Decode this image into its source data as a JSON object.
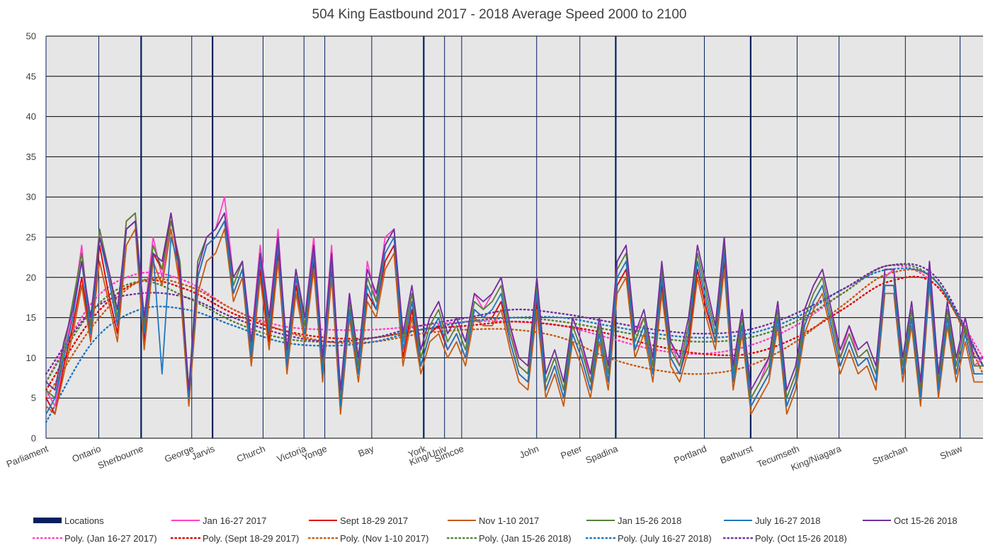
{
  "chart_data": {
    "type": "line",
    "title": "504 King Eastbound 2017 - 2018 Average Speed 2000 to 2100",
    "xlabel": "",
    "ylabel": "",
    "ylim": [
      0,
      50
    ],
    "y_ticks": [
      "0",
      "5",
      "10",
      "15",
      "20",
      "25",
      "30",
      "35",
      "40",
      "45",
      "50"
    ],
    "grid": true,
    "plot_background": "#e7e6e6",
    "legend_position": "bottom",
    "locations": [
      {
        "name": "Parliament",
        "pos": 0.0,
        "major": false
      },
      {
        "name": "Ontario",
        "pos": 0.0563,
        "major": false
      },
      {
        "name": "Sherbourne",
        "pos": 0.1015,
        "major": true
      },
      {
        "name": "George",
        "pos": 0.1555,
        "major": false
      },
      {
        "name": "Jarvis",
        "pos": 0.1777,
        "major": true
      },
      {
        "name": "Church",
        "pos": 0.2316,
        "major": false
      },
      {
        "name": "Victoria",
        "pos": 0.2753,
        "major": false
      },
      {
        "name": "Yonge",
        "pos": 0.2975,
        "major": false
      },
      {
        "name": "Bay",
        "pos": 0.3476,
        "major": false
      },
      {
        "name": "York",
        "pos": 0.4031,
        "major": true
      },
      {
        "name": "King/Univ",
        "pos": 0.4253,
        "major": false
      },
      {
        "name": "Simcoe",
        "pos": 0.4436,
        "major": false
      },
      {
        "name": "John",
        "pos": 0.5236,
        "major": false
      },
      {
        "name": "Peter",
        "pos": 0.5697,
        "major": false
      },
      {
        "name": "Spadina",
        "pos": 0.608,
        "major": true
      },
      {
        "name": "Portland",
        "pos": 0.7026,
        "major": false
      },
      {
        "name": "Bathurst",
        "pos": 0.752,
        "major": true
      },
      {
        "name": "Tecumseth",
        "pos": 0.8016,
        "major": false
      },
      {
        "name": "King/Niagara",
        "pos": 0.8463,
        "major": false
      },
      {
        "name": "Strachan",
        "pos": 0.9171,
        "major": false
      },
      {
        "name": "Shaw",
        "pos": 0.9755,
        "major": false
      }
    ],
    "series": [
      {
        "name": "Jan 16-27 2017",
        "color": "#ff40c8",
        "values": [
          6,
          4,
          10,
          16,
          24,
          12,
          26,
          20,
          14,
          27,
          28,
          15,
          25,
          20,
          27,
          22,
          5,
          22,
          25,
          26,
          30,
          20,
          22,
          12,
          24,
          15,
          26,
          10,
          21,
          15,
          25,
          10,
          24,
          5,
          18,
          9,
          22,
          17,
          25,
          26,
          12,
          18,
          11,
          15,
          17,
          13,
          15,
          12,
          18,
          16,
          18,
          20,
          14,
          9,
          8,
          20,
          7,
          10,
          6,
          15,
          12,
          7,
          14,
          8,
          22,
          24,
          13,
          15,
          9,
          21,
          12,
          9,
          14,
          24,
          19,
          14,
          25,
          8,
          16,
          5,
          7,
          10,
          17,
          5,
          8,
          16,
          19,
          21,
          16,
          10,
          14,
          10,
          11,
          8,
          20,
          21,
          9,
          16,
          6,
          22,
          8,
          16,
          9,
          15,
          9,
          10
        ]
      },
      {
        "name": "Sept 18-29 2017",
        "color": "#e00000",
        "values": [
          5,
          3,
          9,
          14,
          20,
          13,
          24,
          18,
          13,
          26,
          27,
          12,
          23,
          21,
          28,
          20,
          5,
          20,
          24,
          25,
          27,
          18,
          21,
          10,
          21,
          12,
          23,
          9,
          19,
          13,
          22,
          8,
          21,
          4,
          16,
          8,
          18,
          16,
          22,
          24,
          10,
          16,
          9,
          13,
          14,
          11,
          13,
          10,
          16,
          15,
          15,
          17,
          12,
          8,
          7,
          17,
          6,
          9,
          5,
          13,
          10,
          6,
          13,
          7,
          19,
          21,
          11,
          14,
          8,
          19,
          10,
          8,
          12,
          21,
          16,
          12,
          22,
          7,
          14,
          4,
          6,
          8,
          15,
          4,
          7,
          14,
          17,
          19,
          14,
          9,
          12,
          9,
          10,
          7,
          19,
          19,
          8,
          15,
          5,
          20,
          6,
          15,
          8,
          13,
          8,
          8
        ]
      },
      {
        "name": "Nov 1-10 2017",
        "color": "#c55a11",
        "values": [
          4,
          3,
          8,
          13,
          19,
          12,
          22,
          17,
          12,
          24,
          26,
          11,
          22,
          19,
          26,
          19,
          4,
          18,
          22,
          23,
          26,
          17,
          20,
          9,
          20,
          11,
          22,
          8,
          18,
          12,
          21,
          7,
          20,
          3,
          15,
          7,
          17,
          15,
          21,
          23,
          9,
          15,
          8,
          12,
          13,
          10,
          12,
          9,
          15,
          14,
          14,
          16,
          11,
          7,
          6,
          16,
          5,
          8,
          4,
          12,
          9,
          5,
          12,
          6,
          18,
          20,
          10,
          13,
          7,
          18,
          9,
          7,
          11,
          20,
          15,
          11,
          21,
          6,
          13,
          3,
          5,
          7,
          14,
          3,
          6,
          13,
          16,
          18,
          13,
          8,
          11,
          8,
          9,
          6,
          18,
          18,
          7,
          14,
          4,
          19,
          5,
          14,
          7,
          12,
          7,
          7
        ]
      },
      {
        "name": "Jan 15-26 2018",
        "color": "#548235",
        "values": [
          6,
          5,
          11,
          17,
          23,
          14,
          26,
          21,
          15,
          27,
          28,
          14,
          24,
          21,
          27,
          22,
          6,
          22,
          25,
          26,
          28,
          19,
          22,
          11,
          23,
          14,
          25,
          10,
          21,
          14,
          24,
          9,
          23,
          5,
          17,
          9,
          20,
          17,
          24,
          26,
          12,
          18,
          10,
          14,
          16,
          12,
          14,
          11,
          17,
          16,
          17,
          19,
          13,
          9,
          8,
          19,
          7,
          10,
          6,
          14,
          11,
          7,
          14,
          8,
          21,
          23,
          12,
          15,
          9,
          21,
          11,
          9,
          14,
          23,
          18,
          13,
          24,
          8,
          15,
          5,
          7,
          9,
          16,
          5,
          8,
          15,
          18,
          20,
          15,
          10,
          13,
          10,
          11,
          8,
          20,
          20,
          9,
          16,
          6,
          21,
          7,
          16,
          9,
          14,
          9,
          9
        ]
      },
      {
        "name": "July 16-27 2018",
        "color": "#1f77c0",
        "values": [
          3,
          5,
          10,
          15,
          22,
          13,
          25,
          20,
          14,
          26,
          27,
          13,
          23,
          8,
          25,
          21,
          5,
          20,
          24,
          25,
          27,
          18,
          21,
          10,
          22,
          13,
          24,
          9,
          20,
          13,
          23,
          8,
          22,
          4,
          16,
          8,
          19,
          16,
          23,
          25,
          11,
          17,
          9,
          13,
          15,
          11,
          13,
          10,
          16,
          15,
          16,
          18,
          12,
          8,
          7,
          18,
          6,
          9,
          5,
          13,
          10,
          6,
          13,
          7,
          20,
          22,
          11,
          14,
          8,
          20,
          10,
          8,
          13,
          22,
          17,
          12,
          23,
          7,
          14,
          4,
          6,
          8,
          15,
          4,
          7,
          14,
          17,
          19,
          14,
          9,
          12,
          9,
          10,
          7,
          19,
          19,
          8,
          15,
          5,
          20,
          6,
          15,
          8,
          13,
          8,
          8
        ]
      },
      {
        "name": "Oct 15-26 2018",
        "color": "#7030a0",
        "values": [
          7,
          6,
          12,
          16,
          22,
          15,
          25,
          21,
          16,
          26,
          27,
          15,
          23,
          22,
          28,
          21,
          6,
          21,
          25,
          26,
          28,
          20,
          22,
          12,
          23,
          15,
          25,
          11,
          21,
          15,
          24,
          10,
          23,
          6,
          18,
          10,
          21,
          18,
          24,
          26,
          13,
          19,
          11,
          15,
          17,
          13,
          15,
          12,
          18,
          17,
          18,
          20,
          14,
          10,
          9,
          20,
          8,
          11,
          7,
          15,
          12,
          8,
          15,
          9,
          22,
          24,
          13,
          16,
          10,
          22,
          12,
          10,
          15,
          24,
          19,
          14,
          25,
          9,
          16,
          6,
          8,
          10,
          17,
          6,
          9,
          16,
          19,
          21,
          16,
          11,
          14,
          11,
          12,
          9,
          21,
          21,
          10,
          17,
          7,
          22,
          8,
          17,
          10,
          15,
          10,
          10
        ]
      }
    ],
    "trendlines": [
      {
        "name": "Poly. (Jan 16-27 2017)",
        "color": "#ff40c8",
        "x": [
          0,
          0.05,
          0.1,
          0.15,
          0.2,
          0.25,
          0.3,
          0.35,
          0.4,
          0.45,
          0.5,
          0.55,
          0.6,
          0.65,
          0.7,
          0.75,
          0.8,
          0.85,
          0.9,
          0.95,
          1.0
        ],
        "values": [
          7,
          17,
          20.5,
          19.5,
          16,
          14,
          13.5,
          13.5,
          14,
          14.5,
          14.5,
          14,
          12.5,
          11,
          10.5,
          11.5,
          14,
          18,
          21.5,
          19,
          10
        ]
      },
      {
        "name": "Poly. (Sept 18-29 2017)",
        "color": "#e00000",
        "x": [
          0,
          0.05,
          0.1,
          0.15,
          0.2,
          0.25,
          0.3,
          0.35,
          0.4,
          0.45,
          0.5,
          0.55,
          0.6,
          0.65,
          0.7,
          0.75,
          0.8,
          0.85,
          0.9,
          0.95,
          1.0
        ],
        "values": [
          6,
          15,
          19.5,
          18.5,
          15.5,
          13.5,
          12.5,
          12.5,
          13.5,
          14,
          14.5,
          14,
          13,
          11.5,
          10.5,
          10.5,
          12.5,
          16,
          19.5,
          19,
          9
        ]
      },
      {
        "name": "Poly. (Nov 1-10 2017)",
        "color": "#c55a11",
        "x": [
          0,
          0.05,
          0.1,
          0.15,
          0.2,
          0.25,
          0.3,
          0.35,
          0.4,
          0.45,
          0.5,
          0.55,
          0.6,
          0.65,
          0.7,
          0.75,
          0.8,
          0.85,
          0.9,
          0.95,
          1.0
        ],
        "values": [
          5,
          14,
          19.5,
          19,
          16,
          13.5,
          12,
          12,
          13,
          13.5,
          13.5,
          12.5,
          10,
          8.5,
          8,
          9,
          12,
          16.5,
          20.5,
          19.5,
          8
        ]
      },
      {
        "name": "Poly. (Jan 15-26 2018)",
        "color": "#548235",
        "x": [
          0,
          0.05,
          0.1,
          0.15,
          0.2,
          0.25,
          0.3,
          0.35,
          0.4,
          0.45,
          0.5,
          0.55,
          0.6,
          0.65,
          0.7,
          0.75,
          0.8,
          0.85,
          0.9,
          0.95,
          1.0
        ],
        "values": [
          7,
          16,
          19.5,
          17.5,
          14.5,
          12.5,
          12,
          12.5,
          13.5,
          14.5,
          15,
          14.5,
          13.5,
          12.5,
          12,
          12.5,
          14.5,
          18,
          21.5,
          19.5,
          9
        ]
      },
      {
        "name": "Poly. (July 16-27 2018)",
        "color": "#1f77c0",
        "x": [
          0,
          0.05,
          0.1,
          0.15,
          0.2,
          0.25,
          0.3,
          0.35,
          0.4,
          0.45,
          0.5,
          0.55,
          0.6,
          0.65,
          0.7,
          0.75,
          0.8,
          0.85,
          0.9,
          0.95,
          1.0
        ],
        "values": [
          2,
          12,
          16,
          16,
          14,
          12,
          11.5,
          12,
          13.5,
          14.5,
          15,
          15,
          14,
          13,
          12.5,
          13,
          15,
          18.5,
          21,
          19.5,
          9
        ]
      },
      {
        "name": "Poly. (Oct 15-26 2018)",
        "color": "#7030a0",
        "x": [
          0,
          0.05,
          0.1,
          0.15,
          0.2,
          0.25,
          0.3,
          0.35,
          0.4,
          0.45,
          0.5,
          0.55,
          0.6,
          0.65,
          0.7,
          0.75,
          0.8,
          0.85,
          0.9,
          0.95,
          1.0
        ],
        "values": [
          8,
          16,
          18,
          17.5,
          15,
          13,
          12,
          12.5,
          14,
          15,
          16,
          15.5,
          14.5,
          13.5,
          13,
          13.5,
          15.5,
          18.5,
          21.5,
          20,
          9
        ]
      }
    ],
    "legend": [
      {
        "label": "Locations",
        "type": "bar",
        "color": "#002060"
      },
      {
        "label": "Jan 16-27 2017",
        "type": "line",
        "color": "#ff40c8"
      },
      {
        "label": "Sept 18-29 2017",
        "type": "line",
        "color": "#e00000"
      },
      {
        "label": "Nov 1-10 2017",
        "type": "line",
        "color": "#c55a11"
      },
      {
        "label": "Jan 15-26 2018",
        "type": "line",
        "color": "#548235"
      },
      {
        "label": "July 16-27 2018",
        "type": "line",
        "color": "#1f77c0"
      },
      {
        "label": "Oct 15-26 2018",
        "type": "line",
        "color": "#7030a0"
      },
      {
        "label": "Poly. (Jan 16-27 2017)",
        "type": "dotted",
        "color": "#ff40c8"
      },
      {
        "label": "Poly. (Sept 18-29 2017)",
        "type": "dotted",
        "color": "#e00000"
      },
      {
        "label": "Poly. (Nov 1-10 2017)",
        "type": "dotted",
        "color": "#c55a11"
      },
      {
        "label": "Poly. (Jan 15-26 2018)",
        "type": "dotted",
        "color": "#548235"
      },
      {
        "label": "Poly. (July 16-27 2018)",
        "type": "dotted",
        "color": "#1f77c0"
      },
      {
        "label": "Poly. (Oct 15-26 2018)",
        "type": "dotted",
        "color": "#7030a0"
      }
    ]
  }
}
